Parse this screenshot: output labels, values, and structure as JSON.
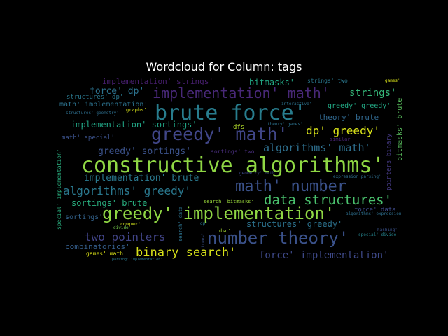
{
  "chart_data": {
    "type": "wordcloud",
    "title": "Wordcloud for Column: tags",
    "colormap": "viridis",
    "background": "#000000",
    "words": [
      {
        "text": "constructive algorithms'",
        "color": "#8fd744"
      },
      {
        "text": "brute force'",
        "color": "#287d8e"
      },
      {
        "text": "greedy' math'",
        "color": "#404688"
      },
      {
        "text": "greedy' implementation'",
        "color": "#8fd744"
      },
      {
        "text": "number theory'",
        "color": "#3b528b"
      },
      {
        "text": "math' number",
        "color": "#3b528b"
      },
      {
        "text": "implementation' math'",
        "color": "#482878"
      },
      {
        "text": "data structures'",
        "color": "#4ac16d"
      },
      {
        "text": "algorithms' greedy'",
        "color": "#2a788e"
      },
      {
        "text": "binary search'",
        "color": "#d8e219"
      },
      {
        "text": "two pointers",
        "color": "#414487"
      },
      {
        "text": "dp' greedy'",
        "color": "#d8e219"
      },
      {
        "text": "algorithms' math'",
        "color": "#2e6f8e"
      },
      {
        "text": "force' implementation'",
        "color": "#3e4989"
      },
      {
        "text": "strings'",
        "color": "#35b779"
      },
      {
        "text": "implementation' brute",
        "color": "#2a788e"
      },
      {
        "text": "greedy' sortings'",
        "color": "#3b528b"
      },
      {
        "text": "force' dp'",
        "color": "#2c728e"
      },
      {
        "text": "implementation' sortings'",
        "color": "#21a585"
      },
      {
        "text": "sortings' brute",
        "color": "#29af7f"
      },
      {
        "text": "structures' greedy'",
        "color": "#2c728e"
      },
      {
        "text": "implementation' strings'",
        "color": "#481f70"
      },
      {
        "text": "bitmasks'",
        "color": "#22a884"
      },
      {
        "text": "combinatorics'",
        "color": "#355f8d"
      },
      {
        "text": "theory' brute",
        "color": "#31688e"
      },
      {
        "text": "greedy' greedy'",
        "color": "#22a884"
      },
      {
        "text": "math' implementation'",
        "color": "#2c728e"
      },
      {
        "text": "sortings'",
        "color": "#33638d"
      },
      {
        "text": "bitmasks' brute",
        "color": "#5ec962"
      },
      {
        "text": "math' special'",
        "color": "#3b528b"
      },
      {
        "text": "structures' dp'",
        "color": "#2a788e"
      },
      {
        "text": "special' implementation'",
        "color": "#29af7f"
      },
      {
        "text": "force' data",
        "color": "#3e4989"
      },
      {
        "text": "games' math'",
        "color": "#dde318"
      },
      {
        "text": "pointers binary",
        "color": "#443983"
      },
      {
        "text": "dfs",
        "color": "#b5de2b"
      },
      {
        "text": "strings' two",
        "color": "#2a788e"
      },
      {
        "text": "graphs'",
        "color": "#d8e219"
      },
      {
        "text": "games'",
        "color": "#d8e219"
      },
      {
        "text": "sortings' two",
        "color": "#472d7b"
      },
      {
        "text": "search' data",
        "color": "#2c728e"
      },
      {
        "text": "search' bitmasks'",
        "color": "#9bd93c"
      },
      {
        "text": "conquer'",
        "color": "#d0e11c"
      },
      {
        "text": "dsu'",
        "color": "#a8db34"
      },
      {
        "text": "dp'",
        "color": "#2a788e"
      },
      {
        "text": "divide",
        "color": "#7ad151"
      },
      {
        "text": "trees'",
        "color": "#3b528b"
      },
      {
        "text": "similar",
        "color": "#482475"
      },
      {
        "text": "theory' games'",
        "color": "#2c728e"
      },
      {
        "text": "interactive'",
        "color": "#2c728e"
      },
      {
        "text": "structures' geometry'",
        "color": "#2e6f8e"
      },
      {
        "text": "expression parsing'",
        "color": "#2e6f8e"
      },
      {
        "text": "parsing' implementation'",
        "color": "#2a788e"
      },
      {
        "text": "algorithms' expression",
        "color": "#2e6f8e"
      },
      {
        "text": "special' divide",
        "color": "#25848e"
      },
      {
        "text": "hashing'",
        "color": "#3b528b"
      },
      {
        "text": "geometry' math'",
        "color": "#3e4989"
      }
    ]
  }
}
